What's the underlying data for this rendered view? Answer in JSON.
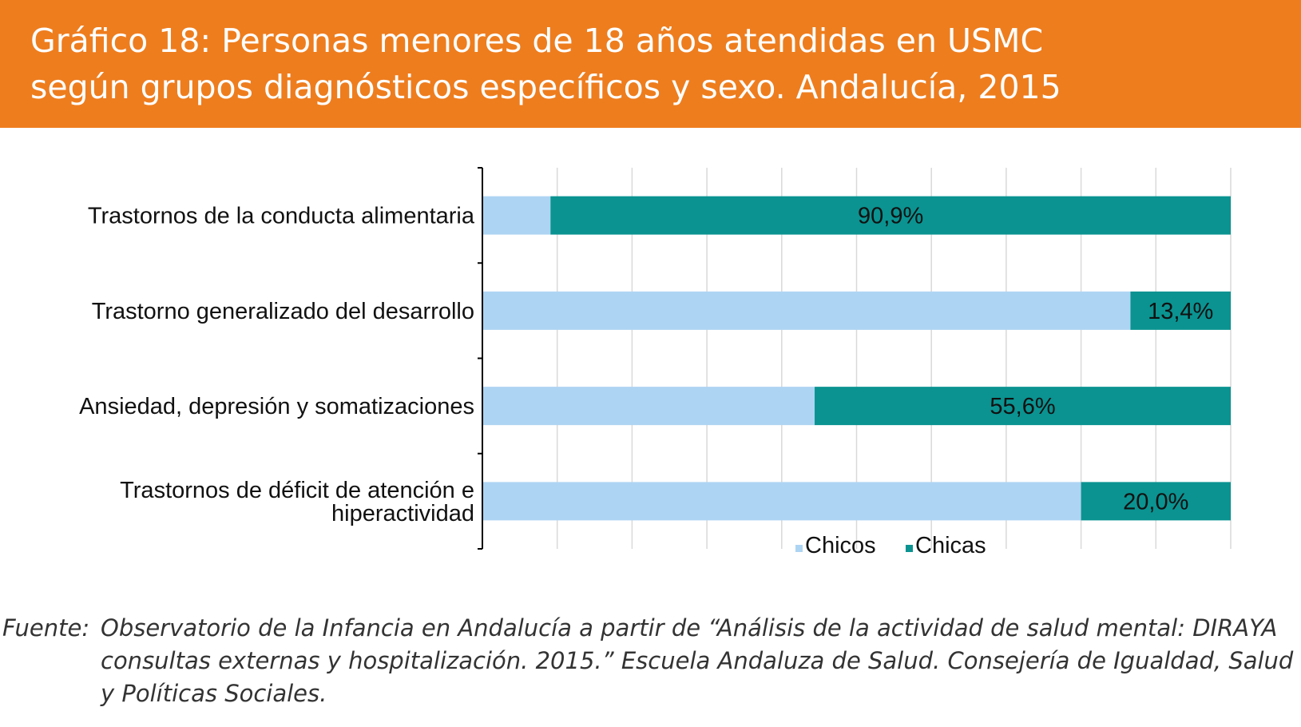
{
  "title": "Gráfico 18: Personas menores de 18 años atendidas en USMC\nsegún grupos diagnósticos específicos y sexo. Andalucía, 2015",
  "source": {
    "label": "Fuente:",
    "text": "Observatorio de la Infancia en Andalucía a partir de “Análisis de la actividad de salud mental: DIRAYA consultas externas y hospitalización. 2015.” Escuela Andaluza de Salud. Consejería de Igualdad, Salud y Políticas Sociales."
  },
  "colors": {
    "header": "#ee7d1e",
    "chicos": "#aed4f3",
    "chicas": "#0a9391",
    "grid": "#d9d9d9"
  },
  "chart_data": {
    "type": "bar",
    "orientation": "horizontal",
    "stacked": "100%",
    "categories": [
      [
        "Trastornos de la conducta alimentaria"
      ],
      [
        "Trastorno generalizado del desarrollo"
      ],
      [
        "Ansiedad, depresión y somatizaciones"
      ],
      [
        "Trastornos de déficit de atención e",
        "hiperactividad"
      ]
    ],
    "series": [
      {
        "name": "Chicos",
        "values": [
          9.1,
          86.6,
          44.4,
          80.0
        ]
      },
      {
        "name": "Chicas",
        "values": [
          90.9,
          13.4,
          55.6,
          20.0
        ],
        "labels": [
          "90,9%",
          "13,4%",
          "55,6%",
          "20,0%"
        ]
      }
    ],
    "xlim": [
      0,
      100
    ],
    "grid": true,
    "legend": "bottom"
  }
}
